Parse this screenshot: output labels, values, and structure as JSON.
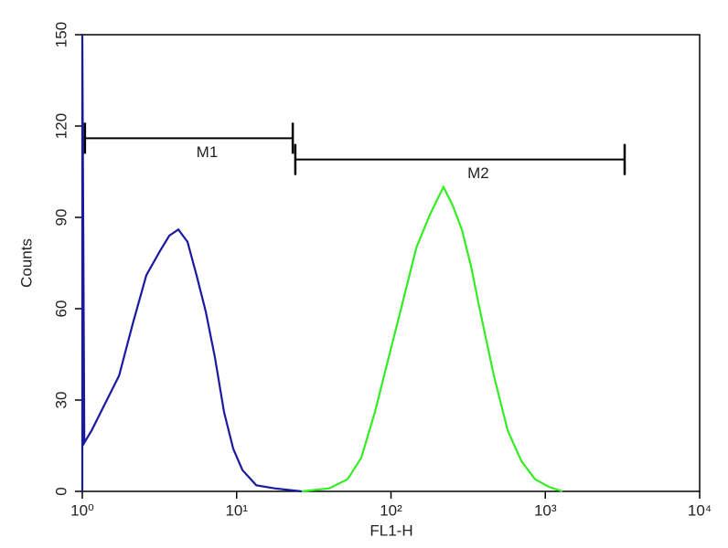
{
  "chart_data": {
    "type": "line",
    "xlabel": "FL1-H",
    "ylabel": "Counts",
    "log_x": true,
    "xlim": [
      1,
      10000
    ],
    "xticks": [
      {
        "value": 1,
        "label": "10⁰"
      },
      {
        "value": 10,
        "label": "10¹"
      },
      {
        "value": 100,
        "label": "10²"
      },
      {
        "value": 1000,
        "label": "10³"
      },
      {
        "value": 10000,
        "label": "10⁴"
      }
    ],
    "ylim": [
      0,
      150
    ],
    "yticks": [
      0,
      30,
      60,
      90,
      120,
      150
    ],
    "series": [
      {
        "color": "#1a1aa0",
        "x": [
          1,
          1,
          1.03,
          1.15,
          1.41,
          1.73,
          2.12,
          2.6,
          3.19,
          3.66,
          4.19,
          4.8,
          5.5,
          6.31,
          7.23,
          8.29,
          9.5,
          10.9,
          13.4,
          17.6,
          26.4
        ],
        "values": [
          0,
          150,
          16,
          20,
          29,
          38,
          55,
          71,
          79,
          84,
          86,
          82,
          71,
          59,
          44,
          26,
          14,
          7,
          2,
          1,
          0
        ]
      },
      {
        "color": "#33ee22",
        "x": [
          26.4,
          39.8,
          52.3,
          64.2,
          78.7,
          96.7,
          119,
          146,
          179,
          219,
          251,
          288,
          330,
          379,
          464,
          570,
          699,
          858,
          1052,
          1291
        ],
        "values": [
          0,
          1,
          4,
          11,
          26,
          44,
          62,
          80,
          91,
          100,
          94,
          86,
          74,
          59,
          38,
          20,
          10,
          4,
          1.5,
          0
        ]
      }
    ],
    "gates": [
      {
        "label": "M1",
        "x": [
          1.04,
          23.1
        ],
        "y": 116
      },
      {
        "label": "M2",
        "x": [
          24,
          3266
        ],
        "y": 109
      }
    ]
  }
}
